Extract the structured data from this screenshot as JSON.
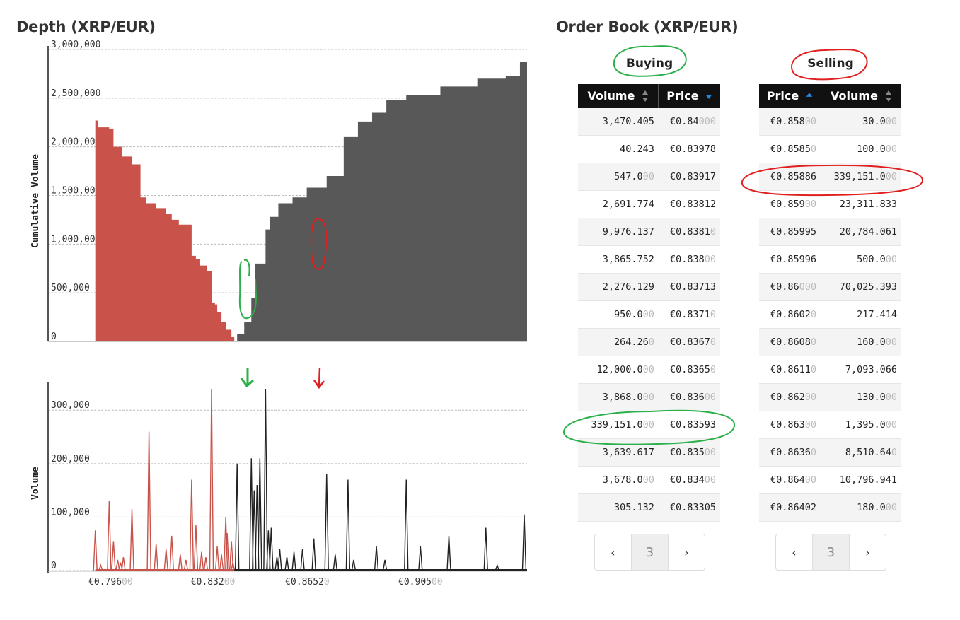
{
  "depth": {
    "title": "Depth (XRP/EUR)",
    "ylabel": "Cumulative Volume",
    "volume_ylabel": "Volume"
  },
  "order_book": {
    "title": "Order Book (XRP/EUR)",
    "buying": {
      "label": "Buying",
      "headers": {
        "volume": "Volume",
        "price": "Price"
      },
      "rows": [
        {
          "volume": "3,470.405",
          "volume_dim": "",
          "price": "€0.84",
          "price_dim": "000"
        },
        {
          "volume": "40.243",
          "volume_dim": "",
          "price": "€0.83978",
          "price_dim": ""
        },
        {
          "volume": "547.0",
          "volume_dim": "00",
          "price": "€0.83917",
          "price_dim": ""
        },
        {
          "volume": "2,691.774",
          "volume_dim": "",
          "price": "€0.83812",
          "price_dim": ""
        },
        {
          "volume": "9,976.137",
          "volume_dim": "",
          "price": "€0.8381",
          "price_dim": "0"
        },
        {
          "volume": "3,865.752",
          "volume_dim": "",
          "price": "€0.838",
          "price_dim": "00"
        },
        {
          "volume": "2,276.129",
          "volume_dim": "",
          "price": "€0.83713",
          "price_dim": ""
        },
        {
          "volume": "950.0",
          "volume_dim": "00",
          "price": "€0.8371",
          "price_dim": "0"
        },
        {
          "volume": "264.26",
          "volume_dim": "0",
          "price": "€0.8367",
          "price_dim": "0"
        },
        {
          "volume": "12,000.0",
          "volume_dim": "00",
          "price": "€0.8365",
          "price_dim": "0"
        },
        {
          "volume": "3,868.0",
          "volume_dim": "00",
          "price": "€0.836",
          "price_dim": "00"
        },
        {
          "volume": "339,151.0",
          "volume_dim": "00",
          "price": "€0.83593",
          "price_dim": ""
        },
        {
          "volume": "3,639.617",
          "volume_dim": "",
          "price": "€0.835",
          "price_dim": "00"
        },
        {
          "volume": "3,678.0",
          "volume_dim": "00",
          "price": "€0.834",
          "price_dim": "00"
        },
        {
          "volume": "305.132",
          "volume_dim": "",
          "price": "€0.83305",
          "price_dim": ""
        }
      ],
      "pager": {
        "prev": "‹",
        "page": "3",
        "next": "›"
      }
    },
    "selling": {
      "label": "Selling",
      "headers": {
        "price": "Price",
        "volume": "Volume"
      },
      "rows": [
        {
          "price": "€0.858",
          "price_dim": "00",
          "volume": "30.0",
          "volume_dim": "00"
        },
        {
          "price": "€0.8585",
          "price_dim": "0",
          "volume": "100.0",
          "volume_dim": "00"
        },
        {
          "price": "€0.85886",
          "price_dim": "",
          "volume": "339,151.0",
          "volume_dim": "00"
        },
        {
          "price": "€0.859",
          "price_dim": "00",
          "volume": "23,311.833",
          "volume_dim": ""
        },
        {
          "price": "€0.85995",
          "price_dim": "",
          "volume": "20,784.061",
          "volume_dim": ""
        },
        {
          "price": "€0.85996",
          "price_dim": "",
          "volume": "500.0",
          "volume_dim": "00"
        },
        {
          "price": "€0.86",
          "price_dim": "000",
          "volume": "70,025.393",
          "volume_dim": ""
        },
        {
          "price": "€0.8602",
          "price_dim": "0",
          "volume": "217.414",
          "volume_dim": ""
        },
        {
          "price": "€0.8608",
          "price_dim": "0",
          "volume": "160.0",
          "volume_dim": "00"
        },
        {
          "price": "€0.8611",
          "price_dim": "0",
          "volume": "7,093.066",
          "volume_dim": ""
        },
        {
          "price": "€0.862",
          "price_dim": "00",
          "volume": "130.0",
          "volume_dim": "00"
        },
        {
          "price": "€0.863",
          "price_dim": "00",
          "volume": "1,395.0",
          "volume_dim": "00"
        },
        {
          "price": "€0.8636",
          "price_dim": "0",
          "volume": "8,510.64",
          "volume_dim": "0"
        },
        {
          "price": "€0.864",
          "price_dim": "00",
          "volume": "10,796.941",
          "volume_dim": ""
        },
        {
          "price": "€0.86402",
          "price_dim": "",
          "volume": "180.0",
          "volume_dim": "00"
        }
      ],
      "pager": {
        "prev": "‹",
        "page": "3",
        "next": "›"
      }
    }
  },
  "chart_data": [
    {
      "type": "area",
      "ylabel": "Cumulative Volume",
      "ylim": [
        0,
        3000000
      ],
      "yticks": [
        0,
        500000,
        1000000,
        1500000,
        2000000,
        2500000,
        3000000
      ],
      "ytick_labels": [
        "0",
        "500,000",
        "1,000,000",
        "1,500,000",
        "2,000,000",
        "2,500,000",
        "3,000,000"
      ],
      "xlim": [
        0.774,
        0.9425
      ],
      "grid": true,
      "series": [
        {
          "color": "#c9534a",
          "x": [
            0.7906,
            0.7915,
            0.7955,
            0.797,
            0.8,
            0.8035,
            0.8065,
            0.8085,
            0.812,
            0.8155,
            0.8175,
            0.82,
            0.8245,
            0.826,
            0.8275,
            0.83,
            0.8315,
            0.8327,
            0.8335,
            0.835,
            0.8365,
            0.8385,
            0.8395
          ],
          "y": [
            2270000,
            2200000,
            2180000,
            2000000,
            1900000,
            1820000,
            1480000,
            1420000,
            1370000,
            1310000,
            1250000,
            1200000,
            880000,
            850000,
            780000,
            720000,
            400000,
            380000,
            300000,
            200000,
            120000,
            50000,
            0
          ]
        },
        {
          "color": "#585858",
          "x": [
            0.8405,
            0.843,
            0.8455,
            0.8468,
            0.8505,
            0.852,
            0.855,
            0.86,
            0.865,
            0.872,
            0.878,
            0.883,
            0.888,
            0.893,
            0.9,
            0.912,
            0.925,
            0.935,
            0.94,
            0.9425
          ],
          "y": [
            80000,
            200000,
            450000,
            800000,
            1150000,
            1280000,
            1420000,
            1480000,
            1580000,
            1700000,
            2100000,
            2260000,
            2350000,
            2480000,
            2530000,
            2620000,
            2700000,
            2730000,
            2870000,
            2880000
          ]
        }
      ]
    },
    {
      "type": "line",
      "ylabel": "Volume",
      "ylim": [
        0,
        340000
      ],
      "yticks": [
        0,
        100000,
        200000,
        300000
      ],
      "ytick_labels": [
        "0",
        "100,000",
        "200,000",
        "300,000"
      ],
      "xticks": [
        0.796,
        0.832,
        0.8652,
        0.905
      ],
      "xtick_labels": [
        {
          "main": "€0.796",
          "dim": "00"
        },
        {
          "main": "€0.832",
          "dim": "00"
        },
        {
          "main": "€0.8652",
          "dim": "0"
        },
        {
          "main": "€0.905",
          "dim": "00"
        }
      ],
      "xlim": [
        0.774,
        0.9425
      ],
      "grid": true,
      "series": [
        {
          "color": "#c9534a",
          "x": [
            0.7906,
            0.7955,
            0.797,
            0.8035,
            0.8095,
            0.812,
            0.8245,
            0.826,
            0.8315,
            0.8365,
            0.837,
            0.7985,
            0.8005,
            0.8175,
            0.8155,
            0.828,
            0.8335,
            0.8385,
            0.7925,
            0.7995,
            0.8205,
            0.8225,
            0.8295,
            0.835,
            0.839
          ],
          "y": [
            75000,
            130000,
            55000,
            115000,
            260000,
            50000,
            170000,
            85000,
            340000,
            100000,
            70000,
            20000,
            25000,
            65000,
            40000,
            35000,
            45000,
            55000,
            10000,
            15000,
            30000,
            20000,
            25000,
            30000,
            15000
          ]
        },
        {
          "color": "#222222",
          "x": [
            0.8405,
            0.8455,
            0.8485,
            0.8505,
            0.8515,
            0.8525,
            0.8555,
            0.8605,
            0.8675,
            0.872,
            0.875,
            0.8795,
            0.8895,
            0.9,
            0.9415,
            0.8465,
            0.8475,
            0.8545,
            0.858,
            0.8635,
            0.8815,
            0.8925,
            0.905,
            0.915,
            0.928,
            0.932
          ],
          "y": [
            200000,
            210000,
            210000,
            340000,
            75000,
            80000,
            40000,
            35000,
            60000,
            180000,
            30000,
            170000,
            45000,
            170000,
            105000,
            150000,
            160000,
            25000,
            25000,
            40000,
            20000,
            20000,
            45000,
            65000,
            80000,
            10000
          ]
        }
      ]
    }
  ]
}
